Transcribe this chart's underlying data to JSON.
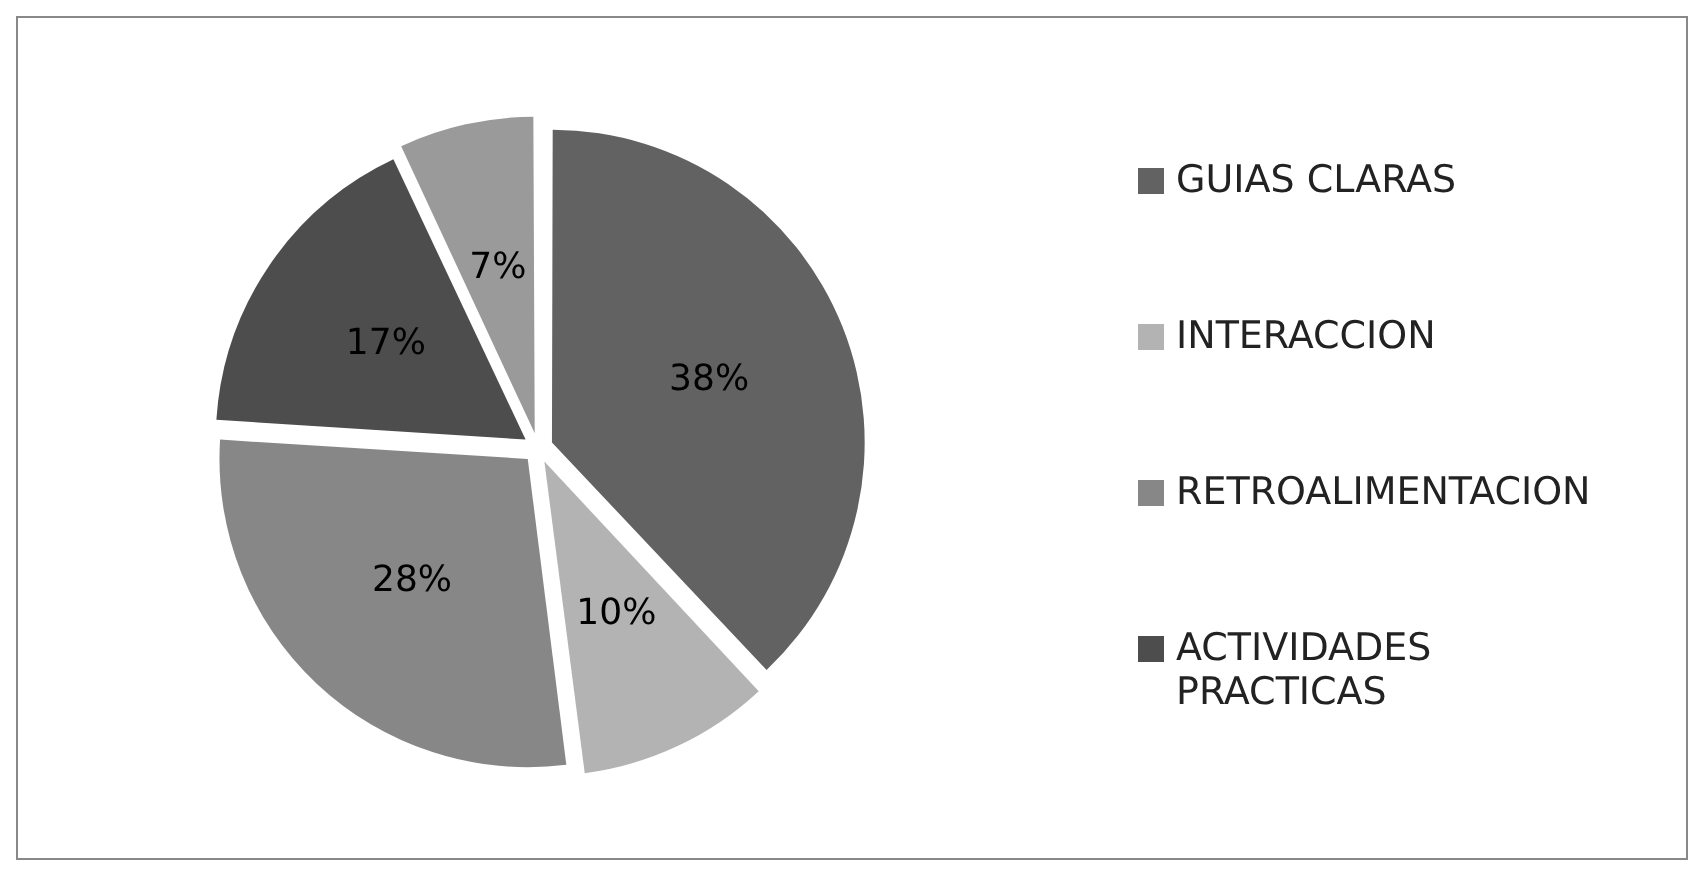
{
  "chart_data": {
    "type": "pie",
    "categories": [
      "GUIAS CLARAS",
      "INTERACCION",
      "RETROALIMENTACION",
      "ACTIVIDADES PRACTICAS",
      null
    ],
    "values": [
      38,
      10,
      28,
      17,
      7
    ],
    "colors": [
      "#626262",
      "#b3b3b3",
      "#878787",
      "#4d4d4d",
      "#9a9a9a"
    ],
    "value_labels": [
      "38%",
      "10%",
      "28%",
      "17%",
      "7%"
    ],
    "legend": "right"
  }
}
